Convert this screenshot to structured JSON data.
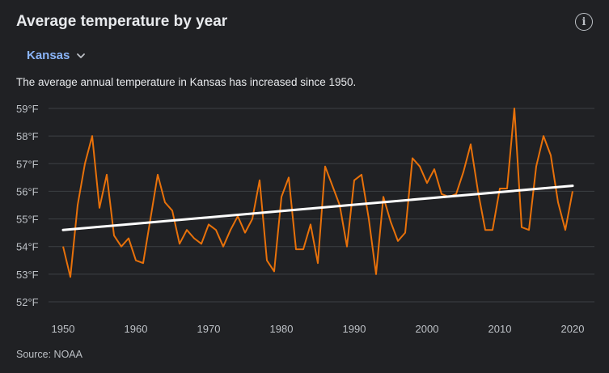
{
  "header": {
    "title": "Average temperature by year",
    "info_icon": "info-icon"
  },
  "region_selector": {
    "value": "Kansas",
    "icon": "chevron-down-icon"
  },
  "description": "The average annual temperature in Kansas has increased since 1950.",
  "source": "Source: NOAA",
  "colors": {
    "series": "#e8710a",
    "trend": "#ffffff",
    "accent": "#8ab4f8",
    "background": "#202124"
  },
  "chart_data": {
    "type": "line",
    "title": "",
    "xlabel": "",
    "ylabel": "",
    "xlim": [
      1950,
      2020
    ],
    "ylim": [
      52,
      59
    ],
    "grid": true,
    "y_ticks": [
      52,
      53,
      54,
      55,
      56,
      57,
      58,
      59
    ],
    "y_tick_labels": [
      "52°F",
      "53°F",
      "54°F",
      "55°F",
      "56°F",
      "57°F",
      "58°F",
      "59°F"
    ],
    "x_ticks": [
      1950,
      1960,
      1970,
      1980,
      1990,
      2000,
      2010,
      2020
    ],
    "x_tick_labels": [
      "1950",
      "1960",
      "1970",
      "1980",
      "1990",
      "2000",
      "2010",
      "2020"
    ],
    "series": [
      {
        "x": [
          1950,
          1951,
          1952,
          1953,
          1954,
          1955,
          1956,
          1957,
          1958,
          1959,
          1960,
          1961,
          1962,
          1963,
          1964,
          1965,
          1966,
          1967,
          1968,
          1969,
          1970,
          1971,
          1972,
          1973,
          1974,
          1975,
          1976,
          1977,
          1978,
          1979,
          1980,
          1981,
          1982,
          1983,
          1984,
          1985,
          1986,
          1987,
          1988,
          1989,
          1990,
          1991,
          1992,
          1993,
          1994,
          1995,
          1996,
          1997,
          1998,
          1999,
          2000,
          2001,
          2002,
          2003,
          2004,
          2005,
          2006,
          2007,
          2008,
          2009,
          2010,
          2011,
          2012,
          2013,
          2014,
          2015,
          2016,
          2017,
          2018,
          2019,
          2020
        ],
        "values": [
          54.0,
          52.9,
          55.5,
          57.0,
          58.0,
          55.4,
          56.6,
          54.4,
          54.0,
          54.3,
          53.5,
          53.4,
          55.0,
          56.6,
          55.6,
          55.3,
          54.1,
          54.6,
          54.3,
          54.1,
          54.8,
          54.6,
          54.0,
          54.6,
          55.1,
          54.5,
          55.0,
          56.4,
          53.5,
          53.1,
          55.8,
          56.5,
          53.9,
          53.9,
          54.8,
          53.4,
          56.9,
          56.2,
          55.5,
          54.0,
          56.4,
          56.6,
          55.0,
          53.0,
          55.8,
          54.9,
          54.2,
          54.5,
          57.2,
          56.9,
          56.3,
          56.8,
          55.9,
          55.8,
          55.9,
          56.7,
          57.7,
          56.0,
          54.6,
          54.6,
          56.1,
          56.1,
          59.0,
          54.7,
          54.6,
          56.9,
          58.0,
          57.3,
          55.6,
          54.6,
          56.0
        ]
      },
      {
        "x": [
          1950,
          2020
        ],
        "values": [
          54.6,
          56.2
        ]
      }
    ]
  }
}
